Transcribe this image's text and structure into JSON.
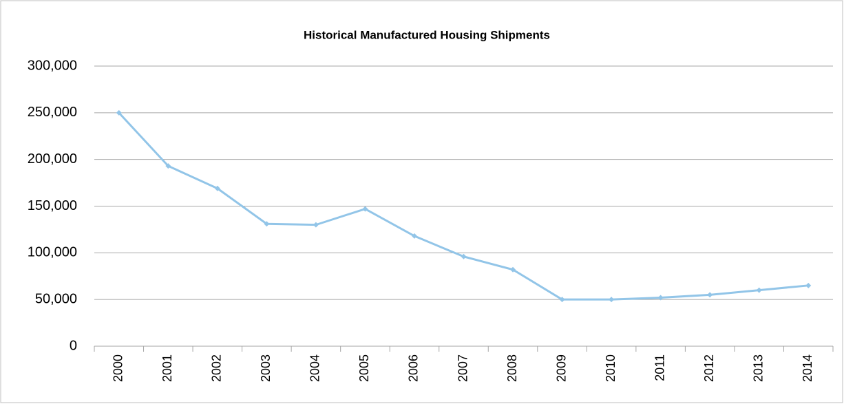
{
  "chart_data": {
    "type": "line",
    "title": "Historical Manufactured  Housing Shipments",
    "categories": [
      "2000",
      "2001",
      "2002",
      "2003",
      "2004",
      "2005",
      "2006",
      "2007",
      "2008",
      "2009",
      "2010",
      "2011",
      "2012",
      "2013",
      "2014"
    ],
    "series": [
      {
        "color": "#92c5e8",
        "values": [
          250000,
          193000,
          169000,
          131000,
          130000,
          147000,
          118000,
          96000,
          82000,
          50000,
          50000,
          52000,
          55000,
          60000,
          65000
        ]
      }
    ],
    "ylim": [
      0,
      300000
    ],
    "yticks": [
      0,
      {
        "value": 50000,
        "label": "50,000"
      },
      {
        "value": 100000,
        "label": "100,000"
      },
      {
        "value": 150000,
        "label": "150,000"
      },
      {
        "value": 200000,
        "label": "200,000"
      },
      {
        "value": 250000,
        "label": "250,000"
      },
      {
        "value": 300000,
        "label": "300,000"
      }
    ],
    "grid": true
  }
}
